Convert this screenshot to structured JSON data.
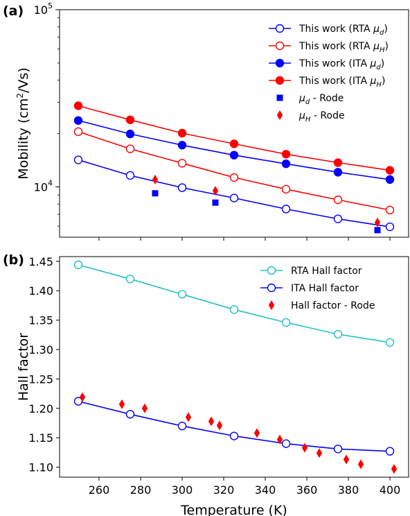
{
  "figure": {
    "panel_a_label": "(a)",
    "panel_b_label": "(b)"
  },
  "chart_data": [
    {
      "type": "line",
      "panel": "(a)",
      "xlabel": "",
      "ylabel": "Mobility (cm²/Vs)",
      "yscale": "log",
      "ylim": [
        5200,
        100000
      ],
      "xlim": [
        241,
        409
      ],
      "ytick_labels": [
        {
          "value": 100000,
          "base": "10",
          "exp": "5"
        },
        {
          "value": 10000,
          "base": "10",
          "exp": "4"
        }
      ],
      "legend_position": "top-right",
      "series": [
        {
          "name": "This work (RTA μd)",
          "name_main": "This work (RTA ",
          "name_sym": "μ",
          "name_sub": "d",
          "name_tail": ")",
          "color": "#0000ff",
          "marker": "circle-open",
          "line": true,
          "x": [
            250,
            275,
            300,
            325,
            350,
            375,
            400
          ],
          "y": [
            14200,
            11600,
            9900,
            8650,
            7500,
            6600,
            5950
          ]
        },
        {
          "name": "This work (RTA μH)",
          "name_main": "This work (RTA ",
          "name_sym": "μ",
          "name_sub": "H",
          "name_tail": ")",
          "color": "#ff0000",
          "marker": "circle-open",
          "line": true,
          "x": [
            250,
            275,
            300,
            325,
            350,
            375,
            400
          ],
          "y": [
            20500,
            16400,
            13600,
            11300,
            9700,
            8450,
            7400
          ]
        },
        {
          "name": "This work (ITA μd)",
          "name_main": "This work (ITA ",
          "name_sym": "μ",
          "name_sub": "d",
          "name_tail": ")",
          "color": "#0000ff",
          "marker": "circle-filled",
          "line": true,
          "x": [
            250,
            275,
            300,
            325,
            350,
            375,
            400
          ],
          "y": [
            23700,
            19900,
            17200,
            15100,
            13500,
            12100,
            11000
          ]
        },
        {
          "name": "This work (ITA μH)",
          "name_main": "This work (ITA ",
          "name_sym": "μ",
          "name_sub": "H",
          "name_tail": ")",
          "color": "#ff0000",
          "marker": "circle-filled",
          "line": true,
          "x": [
            250,
            275,
            300,
            325,
            350,
            375,
            400
          ],
          "y": [
            28700,
            23900,
            20100,
            17500,
            15300,
            13700,
            12400
          ]
        },
        {
          "name": "μd - Rode",
          "name_main": "",
          "name_sym": "μ",
          "name_sub": "d",
          "name_tail": " - Rode",
          "color": "#0000ff",
          "marker": "square",
          "line": false,
          "x": [
            287,
            316,
            394
          ],
          "y": [
            9200,
            8150,
            5700
          ]
        },
        {
          "name": "μH - Rode",
          "name_main": "",
          "name_sym": "μ",
          "name_sub": "H",
          "name_tail": " - Rode",
          "color": "#ff0000",
          "marker": "diamond",
          "line": false,
          "x": [
            287,
            316,
            394
          ],
          "y": [
            11000,
            9500,
            6300
          ]
        }
      ]
    },
    {
      "type": "line",
      "panel": "(b)",
      "xlabel": "Temperature (K)",
      "ylabel": "Hall factor",
      "yscale": "linear",
      "xlim": [
        241,
        409
      ],
      "ylim": [
        1.083,
        1.458
      ],
      "xticks": [
        260,
        280,
        300,
        320,
        340,
        360,
        380,
        400
      ],
      "yticks": [
        1.1,
        1.15,
        1.2,
        1.25,
        1.3,
        1.35,
        1.4,
        1.45
      ],
      "ytick_labels": [
        "1.10",
        "1.15",
        "1.20",
        "1.25",
        "1.30",
        "1.35",
        "1.40",
        "1.45"
      ],
      "legend_position": "top-right",
      "series": [
        {
          "name": "RTA Hall factor",
          "color": "#20c0c0",
          "marker": "circle-open",
          "line": true,
          "x": [
            250,
            275,
            300,
            325,
            350,
            375,
            400
          ],
          "y": [
            1.444,
            1.42,
            1.394,
            1.368,
            1.346,
            1.326,
            1.312
          ]
        },
        {
          "name": "ITA Hall factor",
          "color": "#0000ff",
          "marker": "circle-open",
          "line": true,
          "x": [
            250,
            275,
            300,
            325,
            350,
            375,
            400
          ],
          "y": [
            1.212,
            1.19,
            1.17,
            1.153,
            1.14,
            1.131,
            1.127
          ]
        },
        {
          "name": "Hall factor - Rode",
          "color": "#ff0000",
          "marker": "diamond",
          "line": false,
          "x": [
            252,
            271,
            282,
            303,
            314,
            318,
            336,
            347,
            359,
            366,
            379,
            386,
            402
          ],
          "y": [
            1.219,
            1.207,
            1.2,
            1.185,
            1.178,
            1.171,
            1.158,
            1.147,
            1.133,
            1.124,
            1.113,
            1.105,
            1.097
          ]
        }
      ]
    }
  ]
}
